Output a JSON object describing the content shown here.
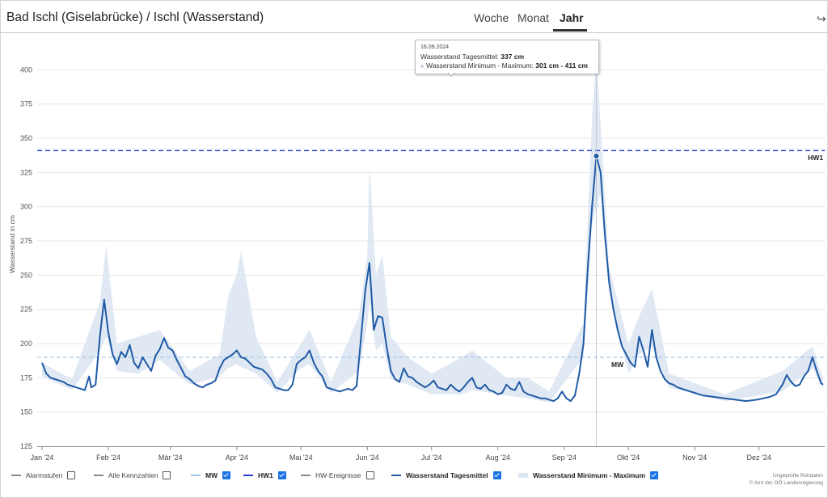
{
  "title": "Bad Ischl (Giselabrücke) / Ischl (Wasserstand)",
  "tabs": [
    {
      "label": "Woche",
      "active": false
    },
    {
      "label": "Monat",
      "active": false
    },
    {
      "label": "Jahr",
      "active": true
    }
  ],
  "share_icon": "share-arrow-icon",
  "tooltip": {
    "date": "16.09.2024",
    "row1_label": "Wasserstand Tagesmittel: ",
    "row1_value": "337 cm",
    "row2_label": "Wasserstand Minimum - Maximum: ",
    "row2_value": "301 cm - 411 cm"
  },
  "legend": [
    {
      "label": "Alarmstufen",
      "checked": false,
      "bold": false,
      "color": "#888888"
    },
    {
      "label": "Alle Kennzahlen",
      "checked": false,
      "bold": false,
      "color": "#888888"
    },
    {
      "label": "MW",
      "checked": true,
      "bold": true,
      "color": "#9ec5e8"
    },
    {
      "label": "HW1",
      "checked": true,
      "bold": true,
      "color": "#2a3fd6"
    },
    {
      "label": "HW-Ereignisse",
      "checked": false,
      "bold": false,
      "color": "#888888"
    },
    {
      "label": "Wasserstand Tagesmittel",
      "checked": true,
      "bold": true,
      "color": "#1f5aa6"
    },
    {
      "label": "Wasserstand Minimum - Maximum",
      "checked": true,
      "bold": true,
      "color": "#dde7f2"
    }
  ],
  "credits": [
    "Ungeprüfte Rohdaten",
    "© Amt der OÖ Landesregierung"
  ],
  "colors": {
    "mean_line": "#1f5aa6",
    "range_band": "#dde7f2",
    "mw_line": "#9ec5e8",
    "hw1_line": "#2a3fd6",
    "grid": "#e6e6e6"
  },
  "chart_data": {
    "type": "line",
    "ylabel": "Wasserstand in cm",
    "ylim": [
      125,
      425
    ],
    "yticks": [
      125,
      150,
      175,
      200,
      225,
      250,
      275,
      300,
      325,
      350,
      375,
      400
    ],
    "xlim": [
      "2024-01-01",
      "2024-12-31"
    ],
    "xticks": [
      {
        "date": "2024-01-01",
        "label": "Jan '24"
      },
      {
        "date": "2024-02-01",
        "label": "Feb '24"
      },
      {
        "date": "2024-03-01",
        "label": "Mär '24"
      },
      {
        "date": "2024-04-01",
        "label": "Apr '24"
      },
      {
        "date": "2024-05-01",
        "label": "Mai '24"
      },
      {
        "date": "2024-06-01",
        "label": "Jun '24"
      },
      {
        "date": "2024-07-01",
        "label": "Jul '24"
      },
      {
        "date": "2024-08-01",
        "label": "Aug '24"
      },
      {
        "date": "2024-09-01",
        "label": "Sep '24"
      },
      {
        "date": "2024-10-01",
        "label": "Okt '24"
      },
      {
        "date": "2024-11-01",
        "label": "Nov '24"
      },
      {
        "date": "2024-12-01",
        "label": "Dez '24"
      }
    ],
    "reference_lines": [
      {
        "name": "MW",
        "value": 190
      },
      {
        "name": "HW1",
        "value": 341
      }
    ],
    "highlight": {
      "date": "2024-09-16",
      "mean": 337,
      "min": 301,
      "max": 411
    },
    "series": [
      {
        "name": "Wasserstand Tagesmittel",
        "points": [
          [
            "2024-01-01",
            186
          ],
          [
            "2024-01-03",
            178
          ],
          [
            "2024-01-05",
            175
          ],
          [
            "2024-01-07",
            174
          ],
          [
            "2024-01-09",
            173
          ],
          [
            "2024-01-11",
            172
          ],
          [
            "2024-01-13",
            170
          ],
          [
            "2024-01-15",
            169
          ],
          [
            "2024-01-17",
            168
          ],
          [
            "2024-01-19",
            167
          ],
          [
            "2024-01-21",
            166
          ],
          [
            "2024-01-23",
            176
          ],
          [
            "2024-01-24",
            168
          ],
          [
            "2024-01-26",
            170
          ],
          [
            "2024-01-28",
            205
          ],
          [
            "2024-01-30",
            232
          ],
          [
            "2024-02-01",
            208
          ],
          [
            "2024-02-03",
            192
          ],
          [
            "2024-02-05",
            185
          ],
          [
            "2024-02-07",
            194
          ],
          [
            "2024-02-09",
            190
          ],
          [
            "2024-02-11",
            199
          ],
          [
            "2024-02-13",
            186
          ],
          [
            "2024-02-15",
            182
          ],
          [
            "2024-02-17",
            190
          ],
          [
            "2024-02-19",
            185
          ],
          [
            "2024-02-21",
            180
          ],
          [
            "2024-02-23",
            191
          ],
          [
            "2024-02-25",
            196
          ],
          [
            "2024-02-27",
            204
          ],
          [
            "2024-02-29",
            197
          ],
          [
            "2024-03-02",
            195
          ],
          [
            "2024-03-04",
            188
          ],
          [
            "2024-03-06",
            182
          ],
          [
            "2024-03-08",
            176
          ],
          [
            "2024-03-10",
            174
          ],
          [
            "2024-03-12",
            171
          ],
          [
            "2024-03-14",
            169
          ],
          [
            "2024-03-16",
            168
          ],
          [
            "2024-03-18",
            170
          ],
          [
            "2024-03-20",
            171
          ],
          [
            "2024-03-22",
            173
          ],
          [
            "2024-03-24",
            182
          ],
          [
            "2024-03-26",
            188
          ],
          [
            "2024-03-28",
            190
          ],
          [
            "2024-03-30",
            192
          ],
          [
            "2024-04-01",
            195
          ],
          [
            "2024-04-03",
            190
          ],
          [
            "2024-04-05",
            189
          ],
          [
            "2024-04-07",
            186
          ],
          [
            "2024-04-09",
            183
          ],
          [
            "2024-04-11",
            182
          ],
          [
            "2024-04-13",
            181
          ],
          [
            "2024-04-15",
            178
          ],
          [
            "2024-04-17",
            174
          ],
          [
            "2024-04-19",
            168
          ],
          [
            "2024-04-21",
            167
          ],
          [
            "2024-04-23",
            166
          ],
          [
            "2024-04-25",
            166
          ],
          [
            "2024-04-27",
            170
          ],
          [
            "2024-04-29",
            185
          ],
          [
            "2024-05-01",
            188
          ],
          [
            "2024-05-03",
            190
          ],
          [
            "2024-05-05",
            195
          ],
          [
            "2024-05-07",
            186
          ],
          [
            "2024-05-09",
            180
          ],
          [
            "2024-05-11",
            176
          ],
          [
            "2024-05-13",
            168
          ],
          [
            "2024-05-15",
            167
          ],
          [
            "2024-05-17",
            166
          ],
          [
            "2024-05-19",
            165
          ],
          [
            "2024-05-21",
            166
          ],
          [
            "2024-05-23",
            167
          ],
          [
            "2024-05-25",
            166
          ],
          [
            "2024-05-27",
            169
          ],
          [
            "2024-05-29",
            203
          ],
          [
            "2024-05-31",
            238
          ],
          [
            "2024-06-02",
            259
          ],
          [
            "2024-06-04",
            210
          ],
          [
            "2024-06-06",
            220
          ],
          [
            "2024-06-08",
            219
          ],
          [
            "2024-06-10",
            198
          ],
          [
            "2024-06-12",
            180
          ],
          [
            "2024-06-14",
            174
          ],
          [
            "2024-06-16",
            172
          ],
          [
            "2024-06-18",
            182
          ],
          [
            "2024-06-20",
            176
          ],
          [
            "2024-06-22",
            175
          ],
          [
            "2024-06-24",
            172
          ],
          [
            "2024-06-26",
            170
          ],
          [
            "2024-06-28",
            168
          ],
          [
            "2024-06-30",
            170
          ],
          [
            "2024-07-02",
            173
          ],
          [
            "2024-07-04",
            168
          ],
          [
            "2024-07-06",
            167
          ],
          [
            "2024-07-08",
            166
          ],
          [
            "2024-07-10",
            170
          ],
          [
            "2024-07-12",
            167
          ],
          [
            "2024-07-14",
            165
          ],
          [
            "2024-07-16",
            168
          ],
          [
            "2024-07-18",
            172
          ],
          [
            "2024-07-20",
            175
          ],
          [
            "2024-07-22",
            168
          ],
          [
            "2024-07-24",
            167
          ],
          [
            "2024-07-26",
            170
          ],
          [
            "2024-07-28",
            166
          ],
          [
            "2024-07-30",
            165
          ],
          [
            "2024-08-01",
            163
          ],
          [
            "2024-08-03",
            164
          ],
          [
            "2024-08-05",
            170
          ],
          [
            "2024-08-07",
            167
          ],
          [
            "2024-08-09",
            166
          ],
          [
            "2024-08-11",
            172
          ],
          [
            "2024-08-13",
            165
          ],
          [
            "2024-08-15",
            163
          ],
          [
            "2024-08-17",
            162
          ],
          [
            "2024-08-19",
            161
          ],
          [
            "2024-08-21",
            160
          ],
          [
            "2024-08-23",
            160
          ],
          [
            "2024-08-25",
            159
          ],
          [
            "2024-08-27",
            158
          ],
          [
            "2024-08-29",
            160
          ],
          [
            "2024-08-31",
            165
          ],
          [
            "2024-09-02",
            160
          ],
          [
            "2024-09-04",
            158
          ],
          [
            "2024-09-06",
            162
          ],
          [
            "2024-09-08",
            178
          ],
          [
            "2024-09-10",
            200
          ],
          [
            "2024-09-12",
            255
          ],
          [
            "2024-09-14",
            300
          ],
          [
            "2024-09-16",
            337
          ],
          [
            "2024-09-18",
            325
          ],
          [
            "2024-09-20",
            280
          ],
          [
            "2024-09-22",
            245
          ],
          [
            "2024-09-24",
            225
          ],
          [
            "2024-09-26",
            210
          ],
          [
            "2024-09-28",
            198
          ],
          [
            "2024-09-30",
            192
          ],
          [
            "2024-10-02",
            186
          ],
          [
            "2024-10-04",
            183
          ],
          [
            "2024-10-06",
            205
          ],
          [
            "2024-10-08",
            195
          ],
          [
            "2024-10-10",
            183
          ],
          [
            "2024-10-12",
            210
          ],
          [
            "2024-10-14",
            190
          ],
          [
            "2024-10-16",
            180
          ],
          [
            "2024-10-18",
            174
          ],
          [
            "2024-10-20",
            171
          ],
          [
            "2024-10-22",
            170
          ],
          [
            "2024-10-24",
            168
          ],
          [
            "2024-10-26",
            167
          ],
          [
            "2024-10-28",
            166
          ],
          [
            "2024-10-30",
            165
          ],
          [
            "2024-11-01",
            164
          ],
          [
            "2024-11-05",
            162
          ],
          [
            "2024-11-10",
            161
          ],
          [
            "2024-11-15",
            160
          ],
          [
            "2024-11-20",
            159
          ],
          [
            "2024-11-25",
            158
          ],
          [
            "2024-11-30",
            159
          ],
          [
            "2024-12-03",
            160
          ],
          [
            "2024-12-06",
            161
          ],
          [
            "2024-12-09",
            163
          ],
          [
            "2024-12-12",
            170
          ],
          [
            "2024-12-14",
            177
          ],
          [
            "2024-12-16",
            172
          ],
          [
            "2024-12-18",
            169
          ],
          [
            "2024-12-20",
            170
          ],
          [
            "2024-12-22",
            176
          ],
          [
            "2024-12-24",
            180
          ],
          [
            "2024-12-26",
            190
          ],
          [
            "2024-12-28",
            180
          ],
          [
            "2024-12-30",
            171
          ],
          [
            "2024-12-31",
            170
          ]
        ]
      },
      {
        "name": "Wasserstand Minimum - Maximum",
        "points_min_max": [
          [
            "2024-01-01",
            176,
            186
          ],
          [
            "2024-01-15",
            166,
            174
          ],
          [
            "2024-01-28",
            195,
            230
          ],
          [
            "2024-01-31",
            205,
            272
          ],
          [
            "2024-02-05",
            180,
            200
          ],
          [
            "2024-02-15",
            178,
            205
          ],
          [
            "2024-02-25",
            188,
            210
          ],
          [
            "2024-03-10",
            170,
            180
          ],
          [
            "2024-03-24",
            176,
            192
          ],
          [
            "2024-03-28",
            182,
            235
          ],
          [
            "2024-04-01",
            185,
            250
          ],
          [
            "2024-04-03",
            183,
            268
          ],
          [
            "2024-04-10",
            178,
            205
          ],
          [
            "2024-04-20",
            164,
            172
          ],
          [
            "2024-05-01",
            182,
            200
          ],
          [
            "2024-05-05",
            185,
            210
          ],
          [
            "2024-05-15",
            164,
            172
          ],
          [
            "2024-05-28",
            180,
            220
          ],
          [
            "2024-06-01",
            215,
            265
          ],
          [
            "2024-06-02",
            230,
            332
          ],
          [
            "2024-06-05",
            195,
            250
          ],
          [
            "2024-06-08",
            200,
            265
          ],
          [
            "2024-06-12",
            174,
            205
          ],
          [
            "2024-06-20",
            170,
            190
          ],
          [
            "2024-07-01",
            163,
            178
          ],
          [
            "2024-07-15",
            163,
            190
          ],
          [
            "2024-07-20",
            166,
            195
          ],
          [
            "2024-08-05",
            162,
            175
          ],
          [
            "2024-08-15",
            160,
            175
          ],
          [
            "2024-08-25",
            157,
            165
          ],
          [
            "2024-09-10",
            190,
            215
          ],
          [
            "2024-09-14",
            285,
            365
          ],
          [
            "2024-09-16",
            301,
            411
          ],
          [
            "2024-09-18",
            310,
            360
          ],
          [
            "2024-09-22",
            238,
            256
          ],
          [
            "2024-10-01",
            178,
            200
          ],
          [
            "2024-10-06",
            192,
            220
          ],
          [
            "2024-10-12",
            198,
            240
          ],
          [
            "2024-10-20",
            168,
            178
          ],
          [
            "2024-11-15",
            158,
            163
          ],
          [
            "2024-12-12",
            165,
            180
          ],
          [
            "2024-12-26",
            182,
            198
          ],
          [
            "2024-12-31",
            168,
            174
          ]
        ]
      }
    ]
  }
}
